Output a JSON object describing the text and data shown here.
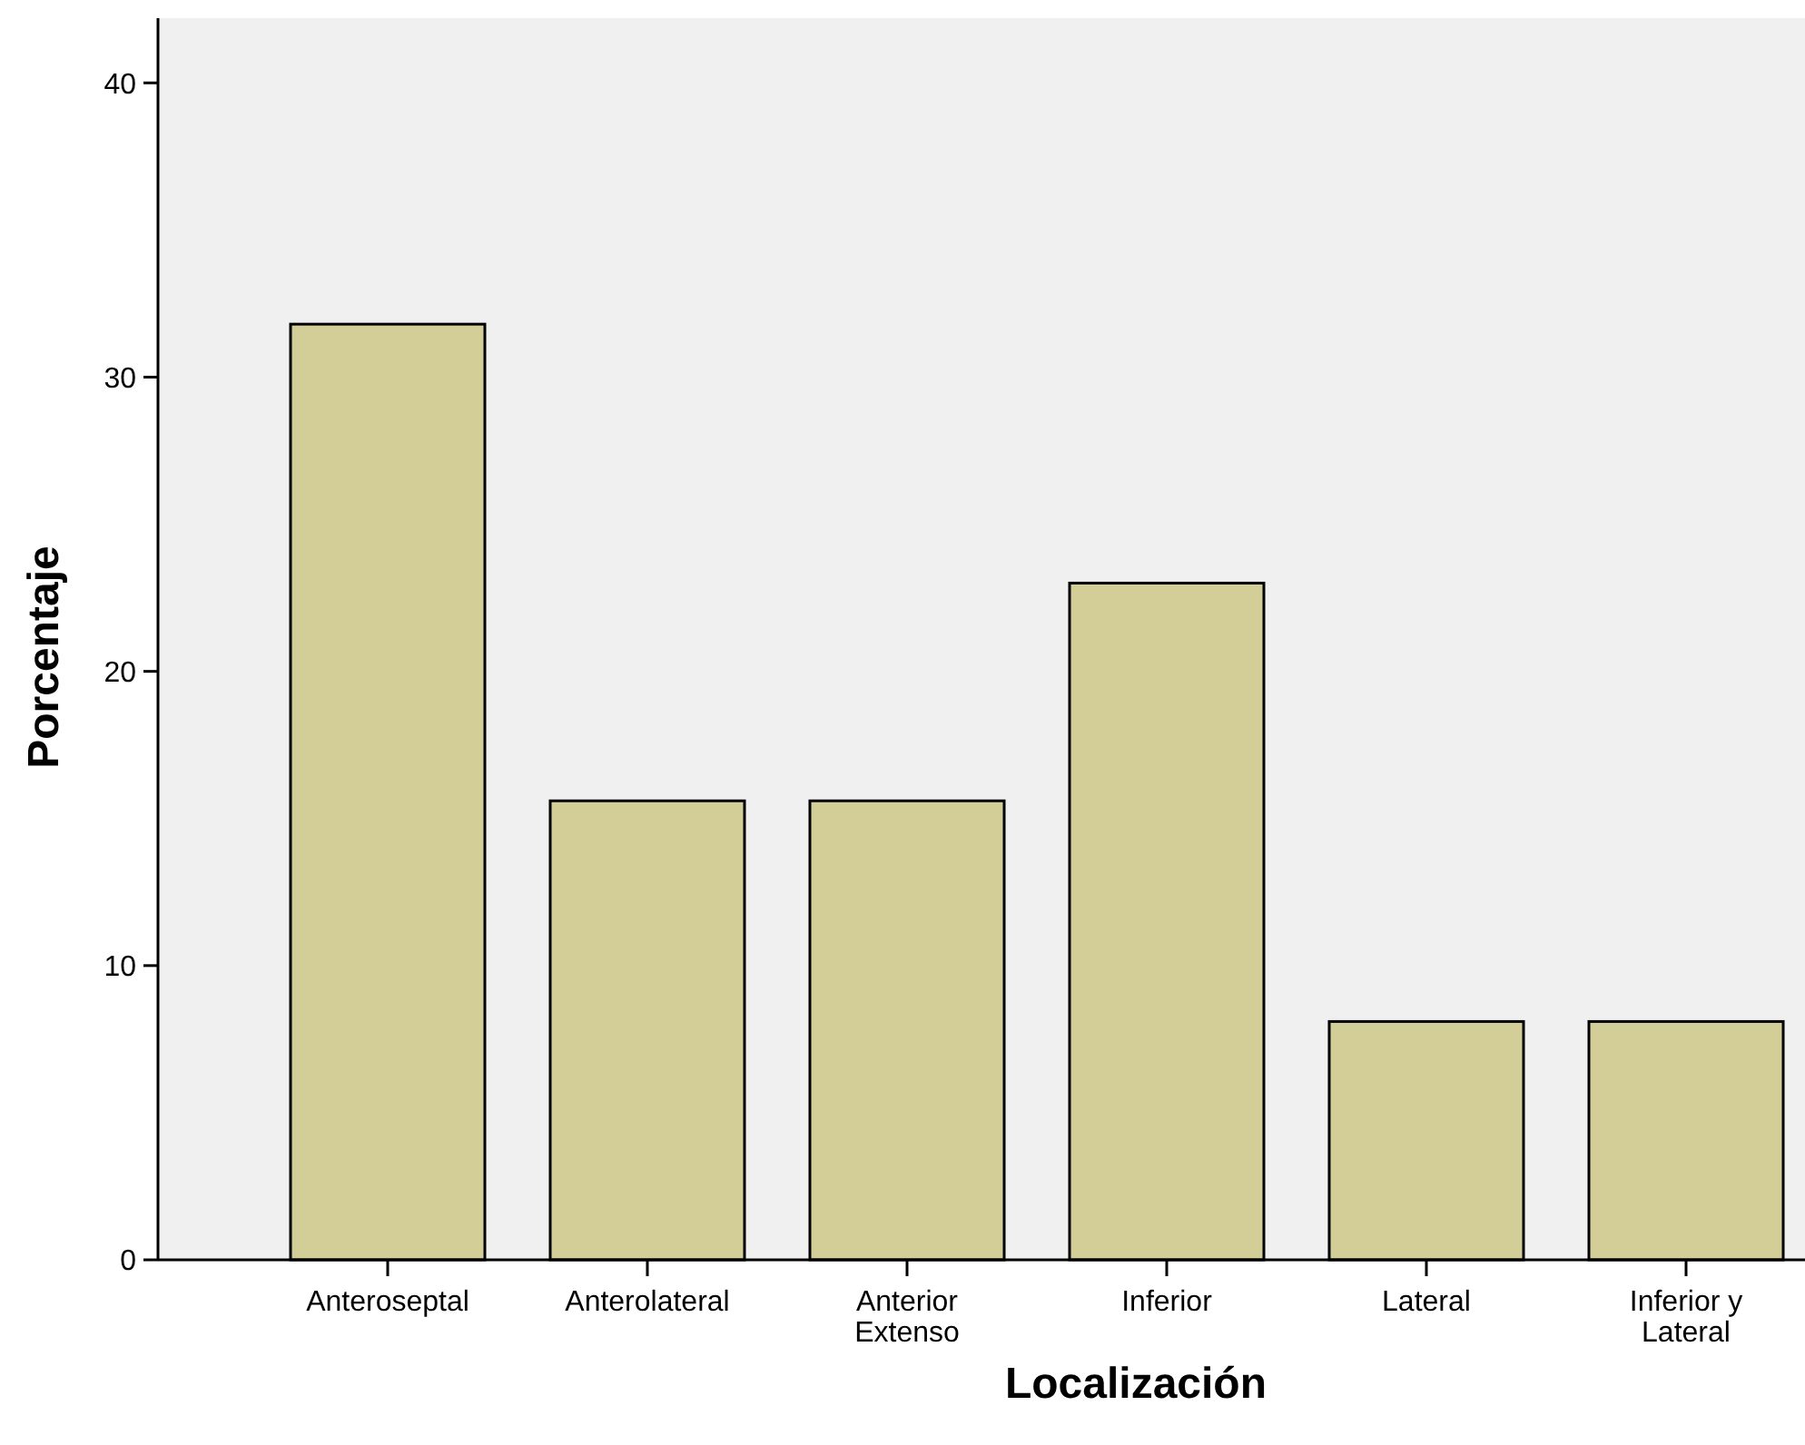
{
  "chart_data": {
    "type": "bar",
    "xlabel": "Localización",
    "ylabel": "Porcentaje",
    "categories": [
      "Anteroseptal",
      "Anterolateral",
      "Anterior\nExtenso",
      "Inferior",
      "Lateral",
      "Inferior y\nLateral"
    ],
    "values": [
      31.8,
      15.6,
      15.6,
      23.0,
      8.1,
      8.1
    ],
    "color": "#d3ce98",
    "ylim": [
      0,
      42.2
    ],
    "yticks": [
      0,
      10,
      20,
      30,
      40
    ],
    "grid": false
  }
}
